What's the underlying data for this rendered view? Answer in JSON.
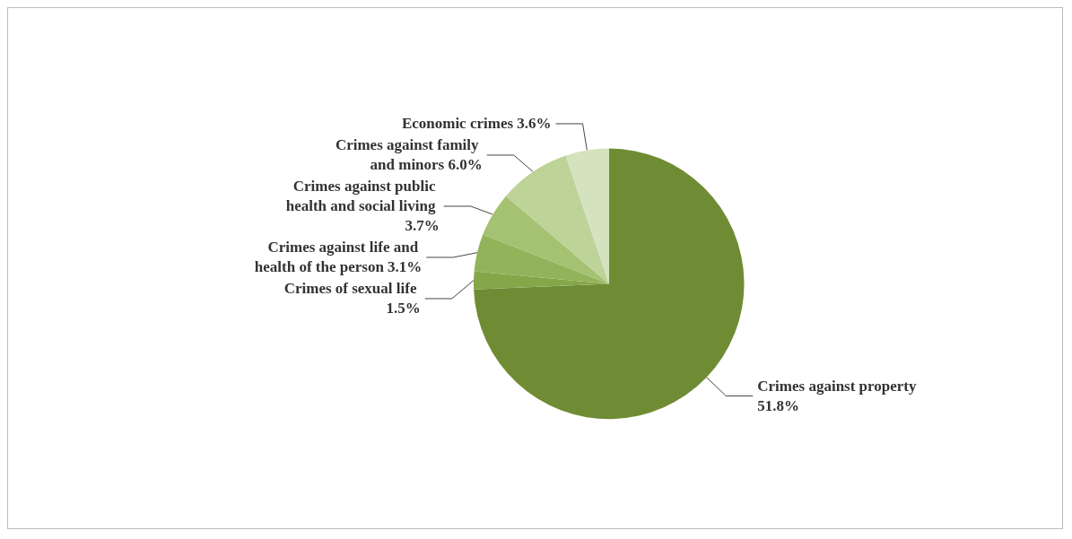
{
  "chart_data": {
    "type": "pie",
    "categories": [
      "Crimes against property",
      "Crimes of sexual life",
      "Crimes against life and health of the person",
      "Crimes against public health and social living",
      "Crimes against family and minors",
      "Economic crimes"
    ],
    "values": [
      51.8,
      1.5,
      3.1,
      3.7,
      6.0,
      3.6
    ],
    "value_labels": [
      "51.8%",
      "1.5%",
      "3.1%",
      "3.7%",
      "6.0%",
      "3.6%"
    ],
    "colors": [
      "#6f8c35",
      "#86a64a",
      "#93b35a",
      "#a5c172",
      "#bdd397",
      "#d4e3be"
    ],
    "legend": false
  }
}
